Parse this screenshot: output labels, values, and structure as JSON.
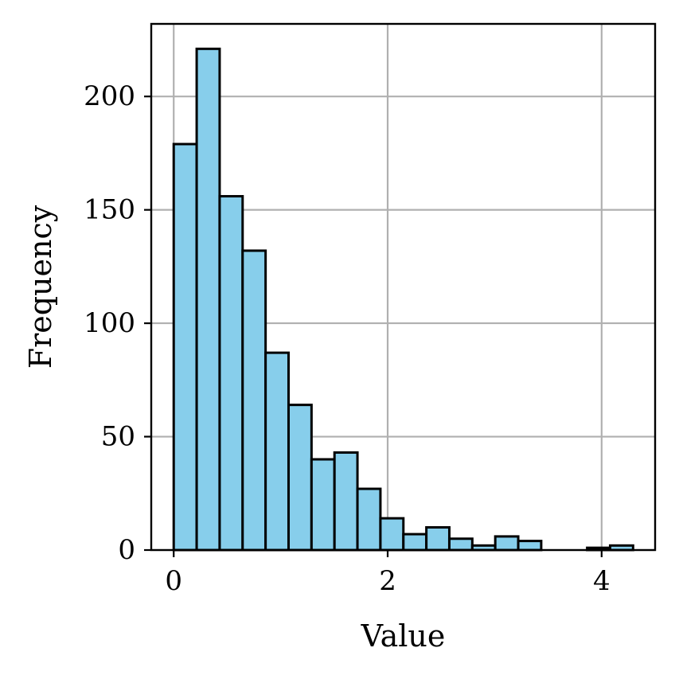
{
  "chart_data": {
    "type": "bar",
    "title": "",
    "xlabel": "Value",
    "ylabel": "Frequency",
    "xlim": [
      -0.21,
      4.5
    ],
    "ylim": [
      0,
      232
    ],
    "xticks": [
      0,
      2,
      4
    ],
    "xtick_labels": [
      "0",
      "2",
      "4"
    ],
    "yticks": [
      0,
      50,
      100,
      150,
      200
    ],
    "ytick_labels": [
      "0",
      "50",
      "100",
      "150",
      "200"
    ],
    "grid": true,
    "legend": "none",
    "bar_color": "#87CEEB",
    "edge_color": "#000000",
    "bin_edges": [
      0.0,
      0.2147,
      0.4294,
      0.6441,
      0.8588,
      1.0735,
      1.2882,
      1.5029,
      1.7176,
      1.9323,
      2.147,
      2.3617,
      2.5764,
      2.7911,
      3.0058,
      3.2205,
      3.4352,
      3.6499,
      3.8646,
      4.0793,
      4.294
    ],
    "values": [
      179,
      221,
      156,
      132,
      87,
      64,
      40,
      43,
      27,
      14,
      7,
      10,
      5,
      2,
      6,
      4,
      0,
      0,
      1,
      2
    ]
  }
}
